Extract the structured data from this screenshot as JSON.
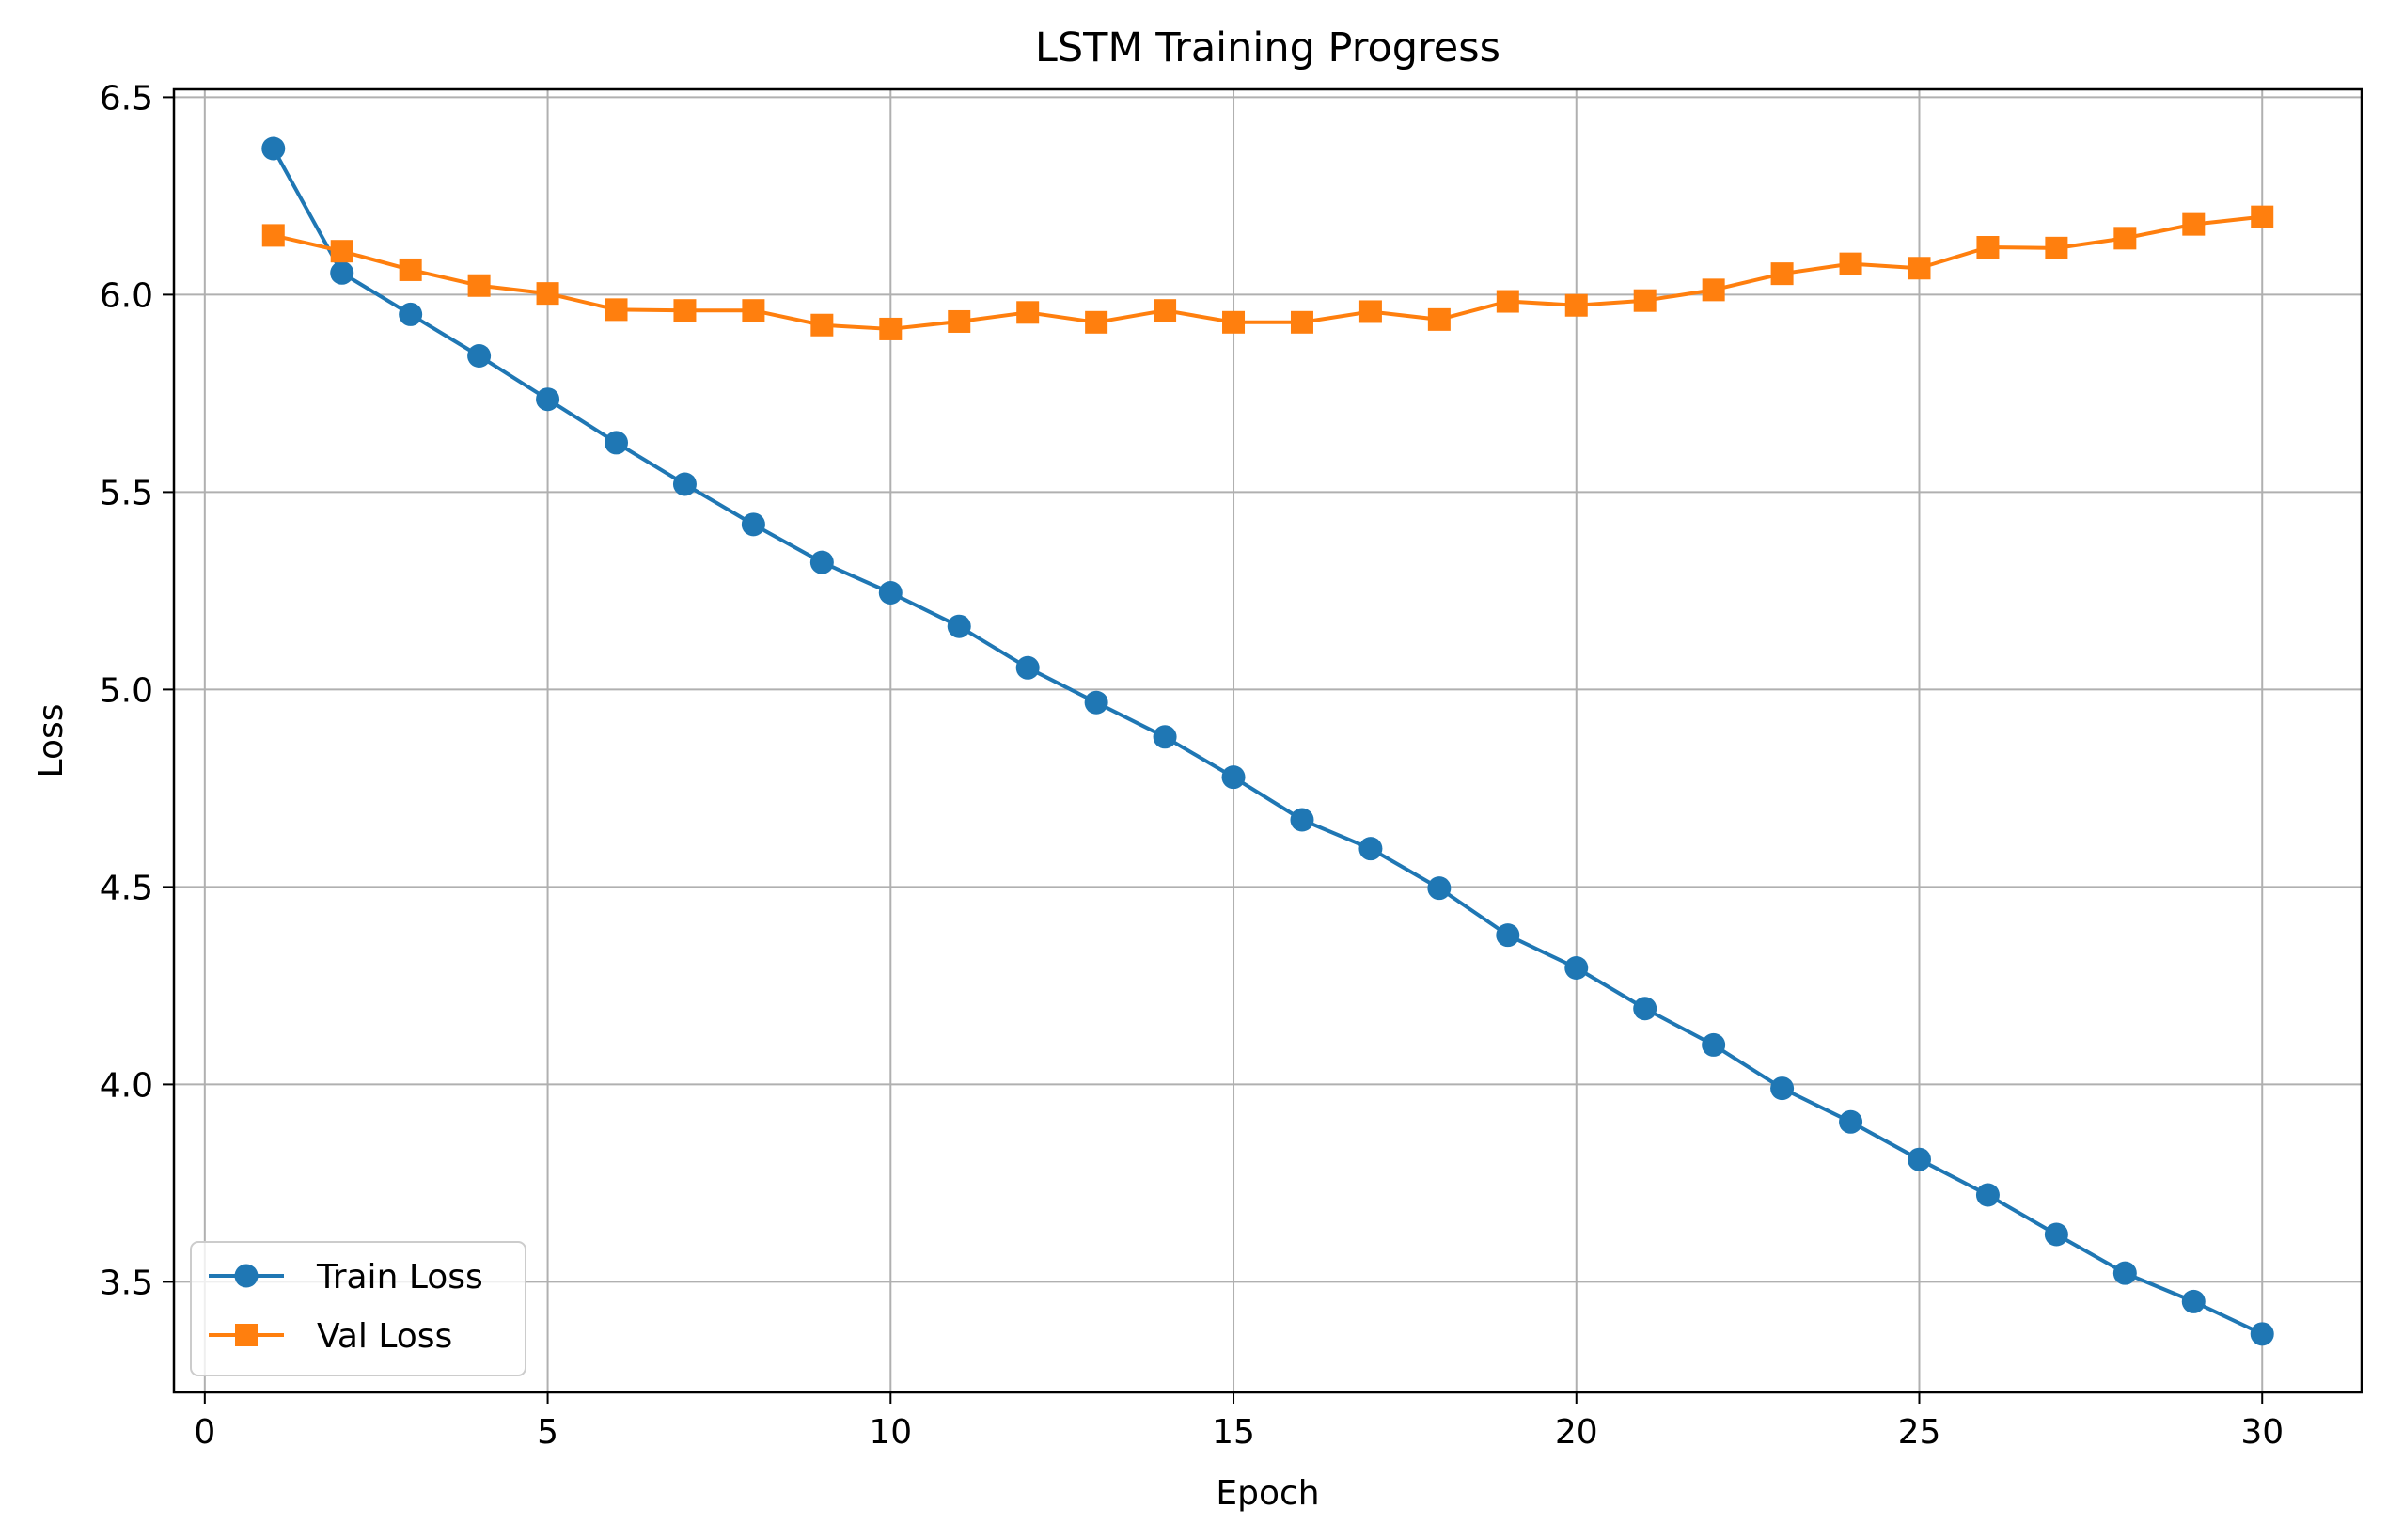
{
  "chart_data": {
    "type": "line",
    "title": "LSTM Training Progress",
    "xlabel": "Epoch",
    "ylabel": "Loss",
    "xlim": [
      -0.45,
      31.45
    ],
    "ylim": [
      3.22,
      6.52
    ],
    "x_ticks": [
      0,
      5,
      10,
      15,
      20,
      25,
      30
    ],
    "y_ticks": [
      3.5,
      4.0,
      4.5,
      5.0,
      5.5,
      6.0,
      6.5
    ],
    "grid": true,
    "legend_position": "lower-left",
    "x": [
      1,
      2,
      3,
      4,
      5,
      6,
      7,
      8,
      9,
      10,
      11,
      12,
      13,
      14,
      15,
      16,
      17,
      18,
      19,
      20,
      21,
      22,
      23,
      24,
      25,
      26,
      27,
      28,
      29,
      30
    ],
    "series": [
      {
        "name": "Train Loss",
        "color": "#1f77b4",
        "marker": "circle",
        "values": [
          6.37,
          6.055,
          5.95,
          5.845,
          5.735,
          5.625,
          5.52,
          5.418,
          5.322,
          5.245,
          5.16,
          5.055,
          4.967,
          4.88,
          4.778,
          4.67,
          4.597,
          4.497,
          4.378,
          4.295,
          4.192,
          4.1,
          3.99,
          3.905,
          3.81,
          3.72,
          3.62,
          3.522,
          3.45,
          3.368
        ]
      },
      {
        "name": "Val Loss",
        "color": "#ff7f0e",
        "marker": "square",
        "values": [
          6.15,
          6.11,
          6.063,
          6.023,
          6.003,
          5.962,
          5.96,
          5.96,
          5.923,
          5.913,
          5.932,
          5.955,
          5.93,
          5.96,
          5.93,
          5.93,
          5.957,
          5.937,
          5.983,
          5.973,
          5.985,
          6.012,
          6.053,
          6.078,
          6.067,
          6.12,
          6.118,
          6.143,
          6.178,
          6.197
        ]
      }
    ]
  }
}
